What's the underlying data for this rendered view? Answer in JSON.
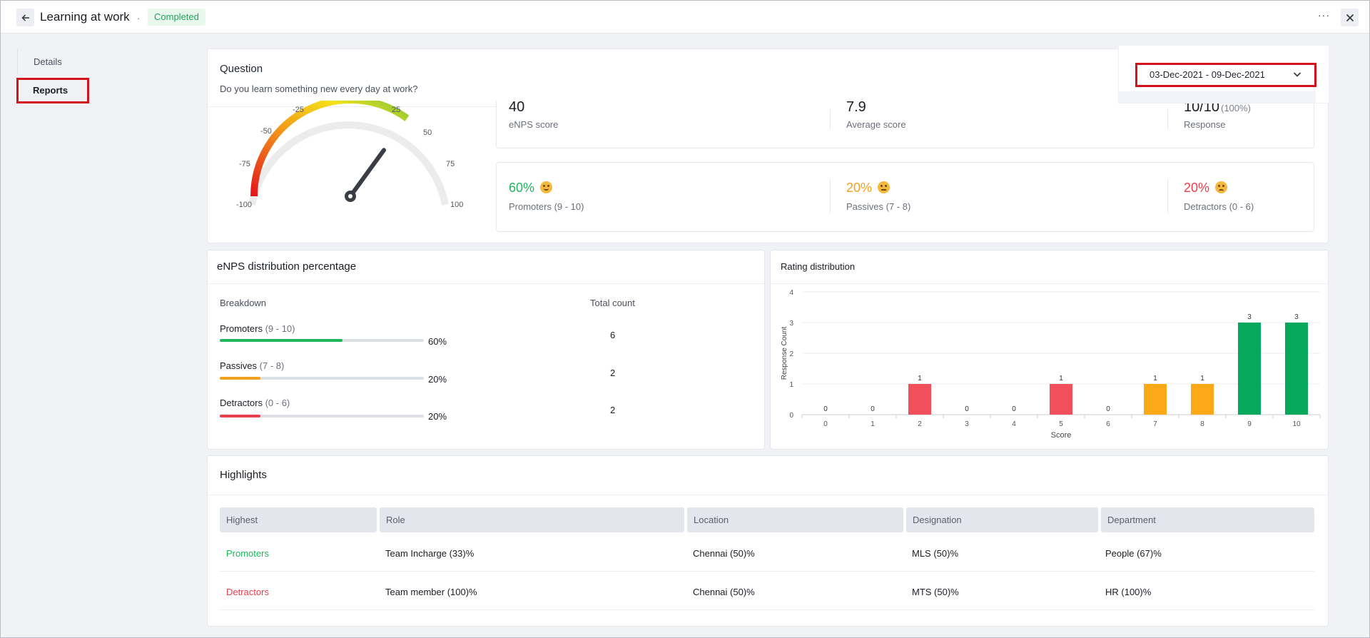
{
  "header": {
    "title": "Learning at work",
    "separator": ".",
    "status": "Completed",
    "more_label": "···"
  },
  "sidebar": {
    "items": [
      {
        "label": "Details",
        "active": false
      },
      {
        "label": "Reports",
        "active": true
      }
    ]
  },
  "question": {
    "label": "Question",
    "text": "Do you learn something new every day at work?"
  },
  "date_range": {
    "value": "03-Dec-2021 - 09-Dec-2021"
  },
  "gauge": {
    "tick_labels": [
      "-100",
      "-75",
      "-50",
      "-25",
      "25",
      "50",
      "75",
      "100"
    ],
    "needle_value": 40
  },
  "stats": {
    "enps": {
      "value": "40",
      "label": "eNPS score"
    },
    "average": {
      "value": "7.9",
      "label": "Average score"
    },
    "response": {
      "value": "10/10",
      "extra": "(100%)",
      "label": "Response"
    }
  },
  "groups": {
    "promoters": {
      "pct": "60%",
      "label": "Promoters (9 - 10)",
      "color": "#1fb45d"
    },
    "passives": {
      "pct": "20%",
      "label": "Passives (7 - 8)",
      "color": "#f0a11d"
    },
    "detractors": {
      "pct": "20%",
      "label": "Detractors (0 - 6)",
      "color": "#e8404d"
    }
  },
  "distribution": {
    "title": "eNPS distribution percentage",
    "breakdown_header": "Breakdown",
    "count_header": "Total count",
    "rows": [
      {
        "name": "Promoters",
        "range": "(9 - 10)",
        "pct": "60%",
        "fraction": 0.6,
        "count": "6",
        "color": "#1fb45d"
      },
      {
        "name": "Passives",
        "range": "(7 - 8)",
        "pct": "20%",
        "fraction": 0.2,
        "count": "2",
        "color": "#f0a11d"
      },
      {
        "name": "Detractors",
        "range": "(0 - 6)",
        "pct": "20%",
        "fraction": 0.2,
        "count": "2",
        "color": "#e8404d"
      }
    ]
  },
  "chart_data": {
    "type": "bar",
    "title": "Rating distribution",
    "xlabel": "Score",
    "ylabel": "Response Count",
    "categories": [
      "0",
      "1",
      "2",
      "3",
      "4",
      "5",
      "6",
      "7",
      "8",
      "9",
      "10"
    ],
    "values": [
      0,
      0,
      1,
      0,
      0,
      1,
      0,
      1,
      1,
      3,
      3
    ],
    "bar_colors": [
      "#f24f5c",
      "#f24f5c",
      "#f24f5c",
      "#f24f5c",
      "#f24f5c",
      "#f24f5c",
      "#f24f5c",
      "#fba918",
      "#fba918",
      "#08a85c",
      "#08a85c"
    ],
    "ylim": [
      0,
      4
    ],
    "yticks": [
      "0",
      "1",
      "2",
      "3",
      "4"
    ],
    "grid": true
  },
  "highlights": {
    "title": "Highlights",
    "columns": [
      "Highest",
      "Role",
      "Location",
      "Designation",
      "Department"
    ],
    "rows": [
      {
        "highest": "Promoters",
        "color": "#1fb45d",
        "role": "Team Incharge (33)%",
        "location": "Chennai (50)%",
        "designation": "MLS (50)%",
        "department": "People (67)%"
      },
      {
        "highest": "Detractors",
        "color": "#e8404d",
        "role": "Team member (100)%",
        "location": "Chennai (50)%",
        "designation": "MTS (50)%",
        "department": "HR (100)%"
      }
    ]
  }
}
